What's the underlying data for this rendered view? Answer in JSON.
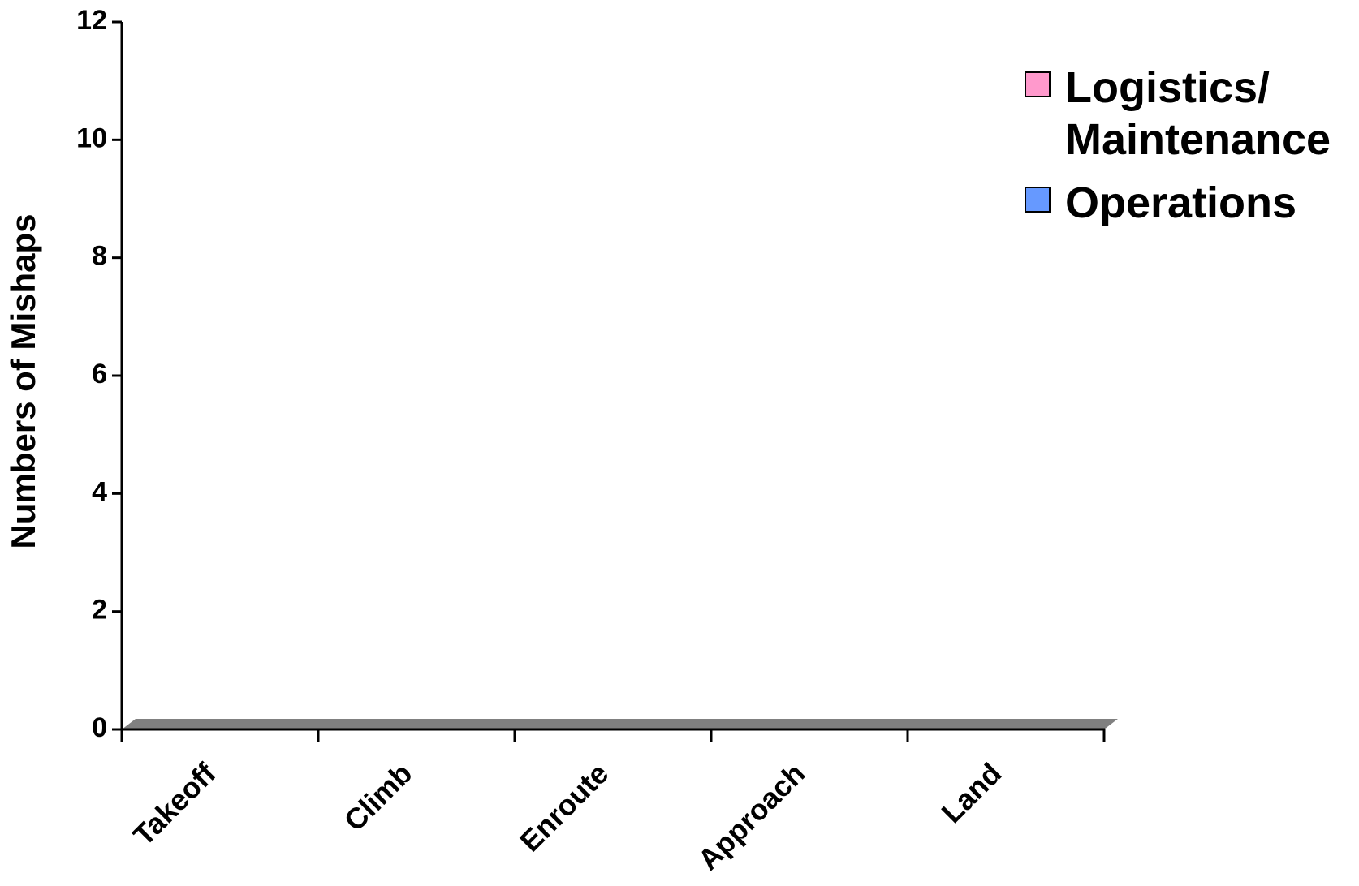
{
  "chart_data": {
    "type": "bar",
    "stacked": true,
    "y_label": "Numbers of Mishaps",
    "categories": [
      "Takeoff",
      "Climb",
      "Enroute",
      "Approach",
      "Land"
    ],
    "series": [
      {
        "name": "Logistics/ Maintenance",
        "color": "#ff99cc",
        "values": [
          0,
          0,
          0,
          0,
          0
        ]
      },
      {
        "name": "Operations",
        "color": "#6699ff",
        "values": [
          0,
          0,
          0,
          0,
          0
        ]
      }
    ],
    "ylim": [
      0,
      12
    ],
    "yticks": [
      0,
      2,
      4,
      6,
      8,
      10,
      12
    ],
    "legend": "upper right"
  }
}
